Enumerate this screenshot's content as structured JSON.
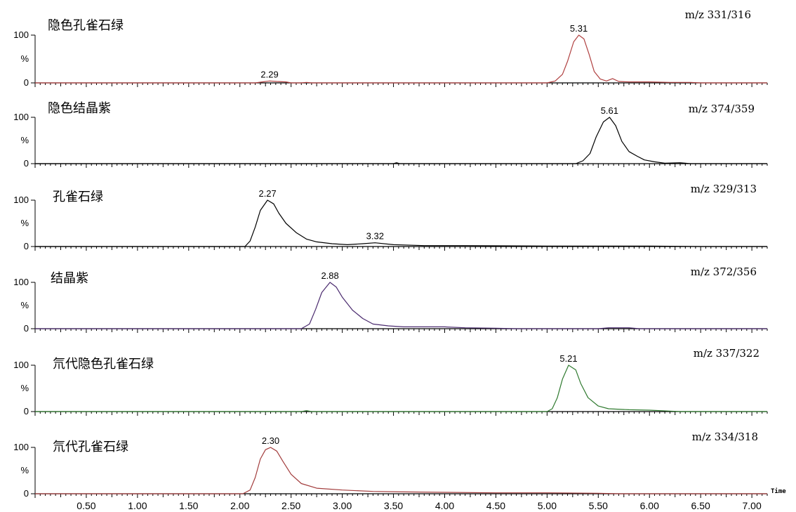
{
  "chart_data": {
    "type": "line",
    "xlim": [
      0,
      7.15
    ],
    "xlabel": "Time",
    "x_ticks": [
      "0.50",
      "1.00",
      "1.50",
      "2.00",
      "2.50",
      "3.00",
      "3.50",
      "4.00",
      "4.50",
      "5.00",
      "5.50",
      "6.00",
      "6.50",
      "7.00"
    ],
    "y_tick_labels": [
      "100",
      "%",
      "0"
    ],
    "panels": [
      {
        "name": "隐色孔雀石绿",
        "ion": "m/z 331/316",
        "color": "#b04040",
        "peak_labels": [
          {
            "text": "5.31",
            "x": 5.31,
            "y": 100
          },
          {
            "text": "2.29",
            "x": 2.29,
            "y": 4
          }
        ],
        "x": [
          0,
          2.15,
          2.22,
          2.29,
          2.36,
          2.45,
          2.5,
          2.6,
          2.65,
          2.7,
          5.0,
          5.08,
          5.15,
          5.2,
          5.26,
          5.31,
          5.36,
          5.41,
          5.46,
          5.52,
          5.58,
          5.64,
          5.7,
          5.8,
          6.0,
          6.2,
          6.4,
          6.5,
          7.15
        ],
        "y": [
          0,
          0,
          2,
          4,
          3,
          2,
          0,
          0,
          1,
          0,
          0,
          4,
          18,
          45,
          86,
          100,
          92,
          60,
          24,
          8,
          4,
          9,
          3,
          2,
          2,
          1,
          1,
          0,
          0
        ]
      },
      {
        "name": "隐色结晶紫",
        "ion": "m/z 374/359",
        "color": "#000000",
        "peak_labels": [
          {
            "text": "5.61",
            "x": 5.61,
            "y": 100
          }
        ],
        "x": [
          0,
          3.5,
          3.53,
          3.56,
          5.28,
          5.35,
          5.42,
          5.48,
          5.55,
          5.61,
          5.67,
          5.73,
          5.8,
          5.88,
          5.95,
          6.05,
          6.15,
          6.3,
          6.4,
          7.15
        ],
        "y": [
          0,
          0,
          2,
          0,
          0,
          6,
          22,
          58,
          90,
          100,
          82,
          48,
          26,
          16,
          8,
          4,
          1,
          2,
          0,
          0
        ]
      },
      {
        "name": "孔雀石绿",
        "ion": "m/z 329/313",
        "color": "#000000",
        "peak_labels": [
          {
            "text": "2.27",
            "x": 2.27,
            "y": 100
          },
          {
            "text": "3.32",
            "x": 3.32,
            "y": 8
          }
        ],
        "x": [
          0,
          2.05,
          2.1,
          2.15,
          2.2,
          2.27,
          2.33,
          2.38,
          2.45,
          2.55,
          2.65,
          2.75,
          2.9,
          3.05,
          3.2,
          3.32,
          3.5,
          3.8,
          4.2,
          5.0,
          6.0,
          6.5,
          7.15
        ],
        "y": [
          0,
          0,
          12,
          42,
          78,
          100,
          92,
          72,
          50,
          30,
          16,
          10,
          6,
          4,
          6,
          8,
          4,
          2,
          2,
          1,
          1,
          0,
          0
        ]
      },
      {
        "name": "结晶紫",
        "ion": "m/z 372/356",
        "color": "#4a2a6e",
        "peak_labels": [
          {
            "text": "2.88",
            "x": 2.88,
            "y": 100
          }
        ],
        "x": [
          0,
          2.6,
          2.68,
          2.74,
          2.8,
          2.88,
          2.94,
          3.0,
          3.1,
          3.2,
          3.3,
          3.45,
          3.6,
          3.8,
          4.0,
          4.2,
          4.5,
          4.7,
          5.5,
          5.6,
          5.8,
          5.9,
          7.15
        ],
        "y": [
          0,
          0,
          10,
          42,
          78,
          100,
          90,
          68,
          40,
          22,
          10,
          6,
          4,
          4,
          4,
          2,
          1,
          0,
          0,
          2,
          2,
          0,
          0
        ]
      },
      {
        "name": "氘代隐色孔雀石绿",
        "ion": "m/z 337/322",
        "color": "#2f7a2f",
        "peak_labels": [
          {
            "text": "5.21",
            "x": 5.21,
            "y": 100
          }
        ],
        "x": [
          0,
          2.6,
          2.65,
          2.7,
          5.0,
          5.05,
          5.1,
          5.15,
          5.21,
          5.28,
          5.33,
          5.4,
          5.5,
          5.6,
          5.8,
          6.0,
          6.2,
          6.3,
          7.15
        ],
        "y": [
          0,
          0,
          2,
          0,
          0,
          6,
          30,
          70,
          100,
          90,
          60,
          30,
          12,
          6,
          4,
          3,
          1,
          0,
          0
        ]
      },
      {
        "name": "氘代孔雀石绿",
        "ion": "m/z 334/318",
        "color": "#a23c3c",
        "peak_labels": [
          {
            "text": "2.30",
            "x": 2.3,
            "y": 100
          }
        ],
        "x": [
          0,
          2.03,
          2.1,
          2.15,
          2.2,
          2.25,
          2.3,
          2.36,
          2.42,
          2.5,
          2.6,
          2.75,
          3.0,
          3.3,
          3.6,
          4.0,
          4.5,
          5.0,
          5.5,
          5.7,
          7.15
        ],
        "y": [
          0,
          0,
          8,
          35,
          75,
          95,
          100,
          92,
          70,
          42,
          22,
          12,
          8,
          5,
          4,
          3,
          2,
          2,
          1,
          0,
          0
        ]
      }
    ]
  }
}
